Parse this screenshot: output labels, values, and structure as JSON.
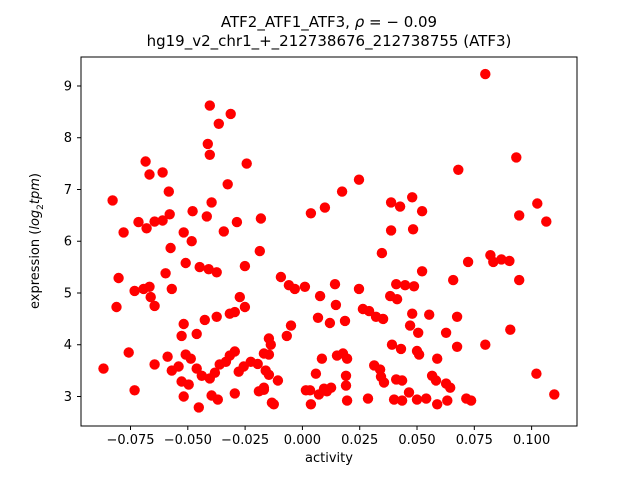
{
  "figure": {
    "title_line1": {
      "pre": "ATF2_ATF1_ATF3, ",
      "rho": "ρ",
      "post": " = − 0.09"
    },
    "title_line2": "hg19_v2_chr1_+_212738676_212738755 (ATF3)",
    "ylabel_parts": {
      "pre": "expression (",
      "log": "log",
      "sub": "2",
      "tpm": "tpm",
      "close": ")"
    }
  },
  "chart_data": {
    "type": "scatter",
    "title": "ATF2_ATF1_ATF3, ρ = − 0.09",
    "subtitle": "hg19_v2_chr1_+_212738676_212738755 (ATF3)",
    "xlabel": "activity",
    "ylabel": "expression (log2tpm)",
    "marker": "circle",
    "marker_color": "#ff0000",
    "axis_color": "#000000",
    "grid": false,
    "legend": "none",
    "xlim": [
      -0.0966,
      0.1198
    ],
    "ylim": [
      2.43,
      9.56
    ],
    "xticks": [
      -0.075,
      -0.05,
      -0.025,
      0.0,
      0.025,
      0.05,
      0.075,
      0.1
    ],
    "xtick_labels": [
      "−0.075",
      "−0.050",
      "−0.025",
      "0.000",
      "0.025",
      "0.050",
      "0.075",
      "0.100"
    ],
    "yticks": [
      3,
      4,
      5,
      6,
      7,
      8,
      9
    ],
    "ytick_labels": [
      "3",
      "4",
      "5",
      "6",
      "7",
      "8",
      "9"
    ],
    "points": [
      [
        -0.0404,
        8.62
      ],
      [
        -0.0313,
        8.46
      ],
      [
        -0.0365,
        8.27
      ],
      [
        -0.0413,
        7.88
      ],
      [
        -0.0404,
        7.67
      ],
      [
        -0.0684,
        7.54
      ],
      [
        -0.0667,
        7.29
      ],
      [
        -0.061,
        7.33
      ],
      [
        -0.0243,
        7.5
      ],
      [
        0.0247,
        7.19
      ],
      [
        0.0798,
        9.23
      ],
      [
        0.0933,
        7.62
      ],
      [
        0.068,
        7.38
      ],
      [
        -0.0583,
        6.96
      ],
      [
        -0.0828,
        6.79
      ],
      [
        -0.0326,
        7.1
      ],
      [
        -0.0396,
        6.75
      ],
      [
        -0.0479,
        6.58
      ],
      [
        -0.0417,
        6.48
      ],
      [
        -0.0715,
        6.37
      ],
      [
        -0.0645,
        6.38
      ],
      [
        -0.0579,
        6.52
      ],
      [
        -0.061,
        6.4
      ],
      [
        -0.068,
        6.25
      ],
      [
        -0.078,
        6.17
      ],
      [
        -0.0518,
        6.17
      ],
      [
        -0.0483,
        6.0
      ],
      [
        -0.0343,
        6.19
      ],
      [
        -0.0286,
        6.37
      ],
      [
        -0.0575,
        5.87
      ],
      [
        -0.0509,
        5.58
      ],
      [
        -0.0448,
        5.5
      ],
      [
        -0.0409,
        5.46
      ],
      [
        -0.0374,
        5.4
      ],
      [
        -0.0597,
        5.38
      ],
      [
        -0.0802,
        5.29
      ],
      [
        -0.0732,
        5.04
      ],
      [
        -0.0693,
        5.08
      ],
      [
        -0.0667,
        5.12
      ],
      [
        -0.057,
        5.08
      ],
      [
        -0.0662,
        4.92
      ],
      [
        -0.0251,
        5.52
      ],
      [
        -0.0273,
        4.92
      ],
      [
        0.0173,
        6.96
      ],
      [
        0.0098,
        6.65
      ],
      [
        0.0037,
        6.54
      ],
      [
        -0.0181,
        6.44
      ],
      [
        -0.0186,
        5.81
      ],
      [
        0.0387,
        6.75
      ],
      [
        0.0426,
        6.67
      ],
      [
        0.0479,
        6.85
      ],
      [
        0.0387,
        6.21
      ],
      [
        0.0483,
        6.23
      ],
      [
        0.0347,
        5.77
      ],
      [
        -0.0094,
        5.31
      ],
      [
        -0.0059,
        5.15
      ],
      [
        -0.0033,
        5.08
      ],
      [
        0.0011,
        5.12
      ],
      [
        0.0142,
        5.17
      ],
      [
        0.0247,
        5.08
      ],
      [
        0.0077,
        4.94
      ],
      [
        0.0409,
        5.17
      ],
      [
        0.0448,
        5.15
      ],
      [
        0.0383,
        4.94
      ],
      [
        0.0413,
        4.88
      ],
      [
        0.0522,
        6.58
      ],
      [
        0.0946,
        6.5
      ],
      [
        0.1025,
        6.73
      ],
      [
        0.1064,
        6.38
      ],
      [
        0.082,
        5.73
      ],
      [
        0.0833,
        5.6
      ],
      [
        0.0868,
        5.65
      ],
      [
        0.0903,
        5.62
      ],
      [
        0.0723,
        5.6
      ],
      [
        0.0522,
        5.42
      ],
      [
        0.0658,
        5.25
      ],
      [
        0.0946,
        5.25
      ],
      [
        0.0487,
        5.13
      ],
      [
        -0.0811,
        4.73
      ],
      [
        -0.0645,
        4.75
      ],
      [
        -0.0518,
        4.4
      ],
      [
        -0.0527,
        4.17
      ],
      [
        -0.0461,
        4.21
      ],
      [
        -0.0426,
        4.48
      ],
      [
        -0.0374,
        4.54
      ],
      [
        -0.0317,
        4.6
      ],
      [
        -0.0295,
        4.63
      ],
      [
        -0.0251,
        4.73
      ],
      [
        -0.0758,
        3.85
      ],
      [
        -0.0868,
        3.54
      ],
      [
        -0.0645,
        3.62
      ],
      [
        -0.0588,
        3.77
      ],
      [
        -0.057,
        3.5
      ],
      [
        -0.054,
        3.58
      ],
      [
        -0.0509,
        3.81
      ],
      [
        -0.0487,
        3.73
      ],
      [
        -0.0461,
        3.54
      ],
      [
        -0.0439,
        3.4
      ],
      [
        -0.0527,
        3.29
      ],
      [
        -0.0496,
        3.23
      ],
      [
        -0.0404,
        3.35
      ],
      [
        -0.0382,
        3.46
      ],
      [
        -0.0361,
        3.62
      ],
      [
        -0.0334,
        3.67
      ],
      [
        -0.0317,
        3.79
      ],
      [
        -0.0295,
        3.87
      ],
      [
        -0.0278,
        3.48
      ],
      [
        -0.0256,
        3.58
      ],
      [
        -0.0732,
        3.12
      ],
      [
        -0.0518,
        3.0
      ],
      [
        -0.0452,
        2.79
      ],
      [
        -0.0396,
        3.02
      ],
      [
        -0.0369,
        2.94
      ],
      [
        -0.0295,
        3.06
      ],
      [
        -0.019,
        3.1
      ],
      [
        -0.0168,
        3.13
      ],
      [
        -0.0133,
        2.88
      ],
      [
        0.0146,
        4.77
      ],
      [
        0.0264,
        4.69
      ],
      [
        0.0291,
        4.65
      ],
      [
        0.0068,
        4.52
      ],
      [
        0.012,
        4.42
      ],
      [
        0.0186,
        4.46
      ],
      [
        0.0321,
        4.54
      ],
      [
        0.0352,
        4.5
      ],
      [
        -0.005,
        4.37
      ],
      [
        -0.0068,
        4.17
      ],
      [
        -0.0146,
        4.12
      ],
      [
        -0.0138,
        4.0
      ],
      [
        -0.0168,
        3.83
      ],
      [
        -0.0146,
        3.81
      ],
      [
        -0.0195,
        3.63
      ],
      [
        -0.0225,
        3.67
      ],
      [
        -0.016,
        3.5
      ],
      [
        -0.0146,
        3.42
      ],
      [
        -0.0107,
        3.31
      ],
      [
        -0.0168,
        3.17
      ],
      [
        -0.0125,
        2.85
      ],
      [
        0.0085,
        3.73
      ],
      [
        0.0151,
        3.79
      ],
      [
        0.0177,
        3.83
      ],
      [
        0.0195,
        3.73
      ],
      [
        0.0059,
        3.44
      ],
      [
        0.0094,
        3.15
      ],
      [
        0.0125,
        3.17
      ],
      [
        0.0033,
        3.12
      ],
      [
        0.0037,
        2.85
      ],
      [
        0.019,
        3.4
      ],
      [
        0.019,
        3.21
      ],
      [
        0.0195,
        2.92
      ],
      [
        0.0286,
        2.96
      ],
      [
        0.0313,
        3.6
      ],
      [
        0.0339,
        3.52
      ],
      [
        0.0343,
        3.38
      ],
      [
        0.0356,
        3.27
      ],
      [
        0.0391,
        4.0
      ],
      [
        0.043,
        3.92
      ],
      [
        0.0409,
        3.33
      ],
      [
        0.0435,
        3.31
      ],
      [
        0.04,
        2.94
      ],
      [
        0.0435,
        2.92
      ],
      [
        0.0015,
        3.12
      ],
      [
        0.0072,
        3.04
      ],
      [
        0.0107,
        3.1
      ],
      [
        0.0465,
        3.08
      ],
      [
        0.0479,
        4.6
      ],
      [
        0.0553,
        4.58
      ],
      [
        0.0675,
        4.54
      ],
      [
        0.047,
        4.37
      ],
      [
        0.0505,
        4.23
      ],
      [
        0.0627,
        4.23
      ],
      [
        0.0675,
        3.96
      ],
      [
        0.05,
        3.88
      ],
      [
        0.0509,
        3.81
      ],
      [
        0.0588,
        3.73
      ],
      [
        0.0798,
        4.0
      ],
      [
        0.0907,
        4.29
      ],
      [
        0.0566,
        3.4
      ],
      [
        0.0583,
        3.31
      ],
      [
        0.0627,
        3.25
      ],
      [
        0.0645,
        3.17
      ],
      [
        0.0632,
        2.92
      ],
      [
        0.054,
        2.96
      ],
      [
        0.05,
        2.94
      ],
      [
        0.0588,
        2.85
      ],
      [
        0.0715,
        2.96
      ],
      [
        0.0736,
        2.92
      ],
      [
        0.1021,
        3.44
      ],
      [
        0.1099,
        3.04
      ]
    ]
  }
}
